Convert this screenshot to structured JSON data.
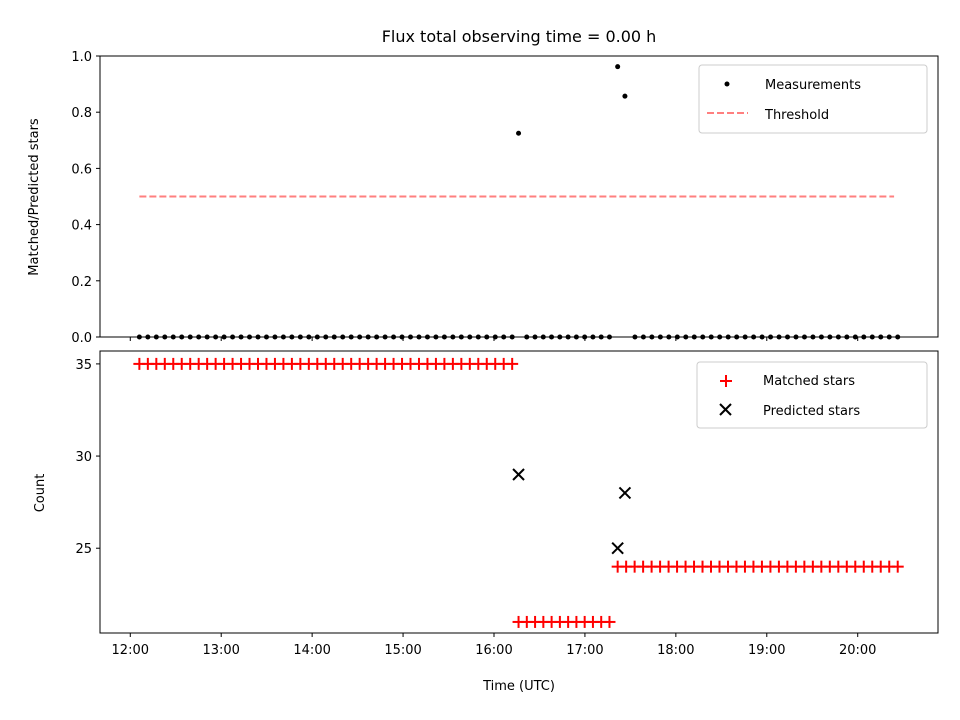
{
  "chart_data": [
    {
      "type": "scatter",
      "title": "Flux total observing time = 0.00 h",
      "xlabel": "",
      "ylabel": "Matched/Predicted stars",
      "xlim": [
        11.667,
        20.883
      ],
      "ylim": [
        0.0,
        1.0
      ],
      "yticks": [
        0.0,
        0.2,
        0.4,
        0.6,
        0.8,
        1.0
      ],
      "ytick_labels": [
        "0.0",
        "0.2",
        "0.4",
        "0.6",
        "0.8",
        "1.0"
      ],
      "xticks": [
        12,
        13,
        14,
        15,
        16,
        17,
        18,
        19,
        20
      ],
      "legend_position": "top-right",
      "series": [
        {
          "name": "Measurements",
          "kind": "points",
          "color": "#000000",
          "groups": [
            {
              "x_start": 12.1,
              "x_end": 16.2,
              "count": 45,
              "y": 0.0
            },
            {
              "x_start": 16.36,
              "x_end": 17.27,
              "count": 11,
              "y": 0.0
            },
            {
              "x_start": 17.55,
              "x_end": 20.44,
              "count": 32,
              "y": 0.0
            }
          ],
          "points": [
            {
              "x": 16.27,
              "y": 0.725
            },
            {
              "x": 17.36,
              "y": 0.962
            },
            {
              "x": 17.44,
              "y": 0.857
            }
          ]
        },
        {
          "name": "Threshold",
          "kind": "dashed-line",
          "color": "#ff7f7f",
          "x": [
            12.1,
            20.4
          ],
          "y": [
            0.5,
            0.5
          ]
        }
      ]
    },
    {
      "type": "scatter",
      "title": "",
      "xlabel": "Time (UTC)",
      "ylabel": "Count",
      "xlim": [
        11.667,
        20.883
      ],
      "ylim": [
        20.4,
        35.7
      ],
      "yticks": [
        25,
        30,
        35
      ],
      "ytick_labels": [
        "25",
        "30",
        "35"
      ],
      "xticks": [
        12,
        13,
        14,
        15,
        16,
        17,
        18,
        19,
        20
      ],
      "xtick_labels": [
        "12:00",
        "13:00",
        "14:00",
        "15:00",
        "16:00",
        "17:00",
        "18:00",
        "19:00",
        "20:00"
      ],
      "legend_position": "top-right",
      "series": [
        {
          "name": "Matched stars",
          "kind": "plus",
          "color": "#ff0000",
          "groups": [
            {
              "x_start": 12.1,
              "x_end": 16.2,
              "count": 45,
              "y": 35
            },
            {
              "x_start": 16.27,
              "x_end": 17.27,
              "count": 12,
              "y": 21
            },
            {
              "x_start": 17.36,
              "x_end": 20.44,
              "count": 34,
              "y": 24
            }
          ]
        },
        {
          "name": "Predicted stars",
          "kind": "x",
          "color": "#000000",
          "points": [
            {
              "x": 16.27,
              "y": 29
            },
            {
              "x": 17.36,
              "y": 25
            },
            {
              "x": 17.44,
              "y": 28
            }
          ]
        }
      ]
    }
  ]
}
